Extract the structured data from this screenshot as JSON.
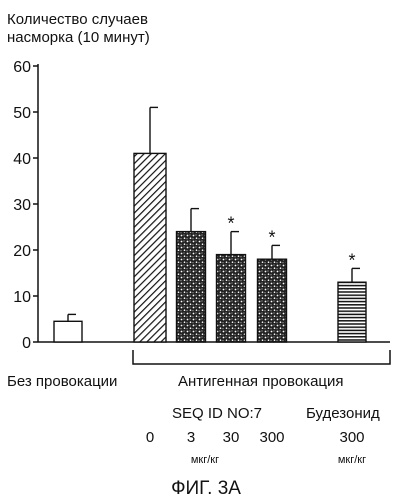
{
  "chart_data": {
    "type": "bar",
    "ylabel_lines": [
      "Количество случаев",
      "насморка (10 минут)"
    ],
    "ylim": [
      0,
      60
    ],
    "yticks": [
      0,
      10,
      20,
      30,
      40,
      50,
      60
    ],
    "bars": [
      {
        "id": "no-challenge",
        "value": 4.5,
        "error": 1.5,
        "pattern": "none",
        "star": false
      },
      {
        "id": "antigen-0",
        "value": 41,
        "error": 10,
        "pattern": "diagonal",
        "star": false
      },
      {
        "id": "seq-3",
        "value": 24,
        "error": 5,
        "pattern": "stipple",
        "star": false
      },
      {
        "id": "seq-30",
        "value": 19,
        "error": 5,
        "pattern": "stipple",
        "star": true
      },
      {
        "id": "seq-300",
        "value": 18,
        "error": 3,
        "pattern": "stipple",
        "star": true
      },
      {
        "id": "budesonide-300",
        "value": 13,
        "error": 3,
        "pattern": "horizontal",
        "star": true
      }
    ],
    "star_symbol": "*",
    "group_labels": {
      "no_challenge": "Без провокации",
      "antigen_challenge": "Антигенная провокация"
    },
    "sub_labels": {
      "seq": "SEQ ID NO:7",
      "budesonide": "Будезонид",
      "doses": [
        "0",
        "3",
        "30",
        "300",
        "300"
      ],
      "unit": "мкг/кг"
    },
    "figure_label": "ФИГ. 3A"
  }
}
